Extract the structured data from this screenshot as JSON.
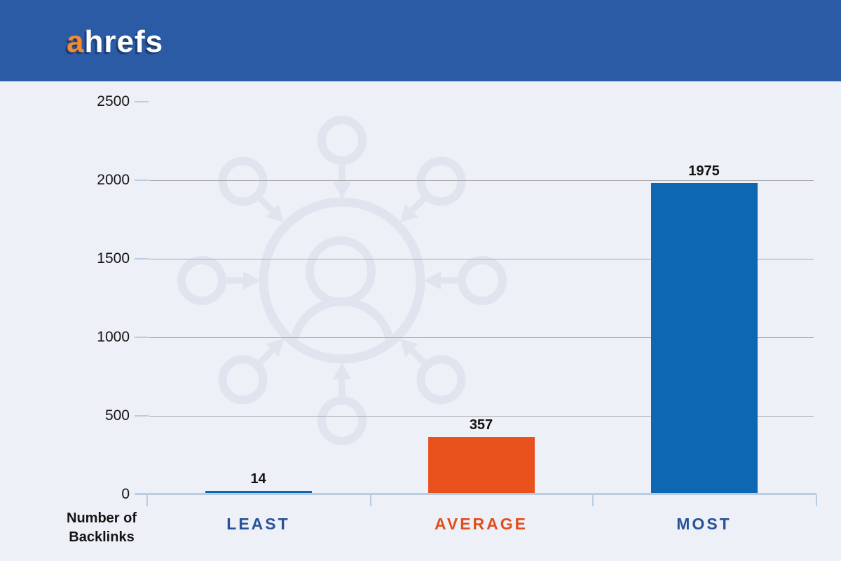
{
  "header": {
    "logo": {
      "prefix": "a",
      "rest": "hrefs"
    }
  },
  "chart_data": {
    "type": "bar",
    "title": "",
    "categories": [
      "LEAST",
      "AVERAGE",
      "MOST"
    ],
    "values": [
      14,
      357,
      1975
    ],
    "value_labels": [
      "14",
      "357",
      "1975"
    ],
    "bar_colors": [
      "#0d68b1",
      "#e9511c",
      "#0d68b1"
    ],
    "category_label_colors": [
      "#28519a",
      "#e24e1b",
      "#28519a"
    ],
    "xlabel": "",
    "ylabel": "Number of Backlinks",
    "ylabel_lines": [
      "Number of",
      "Backlinks"
    ],
    "ylim": [
      0,
      2500
    ],
    "yticks": [
      2500,
      2000,
      1500,
      1000,
      500,
      0
    ],
    "grid": true,
    "legend": false,
    "watermark_icon": "inbound-links-network-icon"
  },
  "colors": {
    "header_bg": "#2b5ba4",
    "logo_a": "#f68a2d",
    "logo_text": "#ffffff",
    "background": "#edf0f6",
    "watermark": "#dfe4ef",
    "gridline": "#a7a7a7",
    "axis_line": "#b9cde1",
    "value_label": "#111111"
  }
}
